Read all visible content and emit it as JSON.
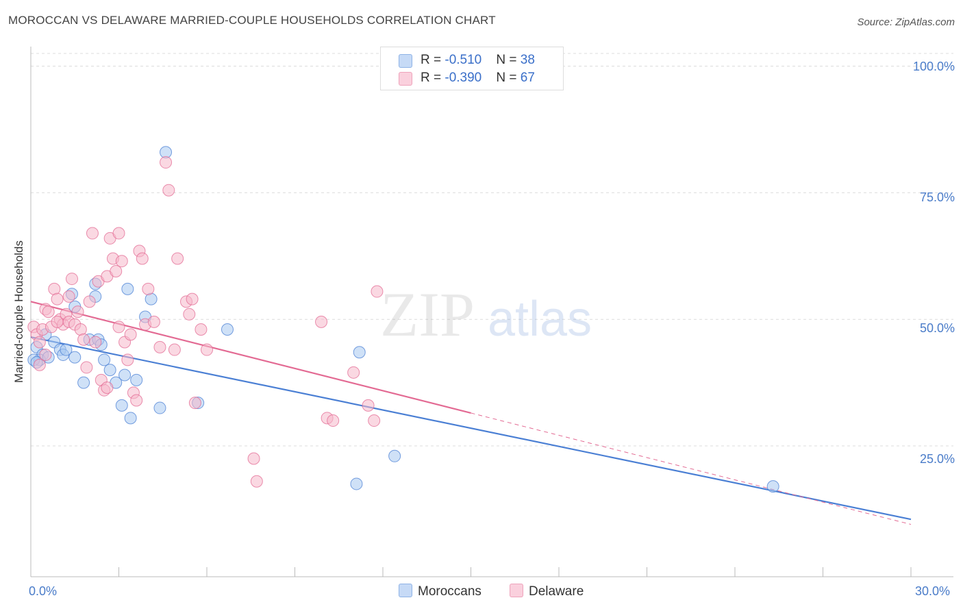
{
  "header": {
    "title": "MOROCCAN VS DELAWARE MARRIED-COUPLE HOUSEHOLDS CORRELATION CHART",
    "source": "Source: ZipAtlas.com"
  },
  "watermark": {
    "zip": "ZIP",
    "atlas": "atlas"
  },
  "legend_top": {
    "rows": [
      {
        "r_label": "R = ",
        "r_value": "-0.510",
        "n_label": "N = ",
        "n_value": "38",
        "color": "#a8c8f0"
      },
      {
        "r_label": "R = ",
        "r_value": "-0.390",
        "n_label": "N = ",
        "n_value": "67",
        "color": "#f5b8cb"
      }
    ]
  },
  "legend_bottom": [
    {
      "label": "Moroccans",
      "color": "#a8c8f0"
    },
    {
      "label": "Delaware",
      "color": "#f5b8cb"
    }
  ],
  "axes": {
    "ylabel": "Married-couple Households",
    "y_ticks": [
      "100.0%",
      "75.0%",
      "50.0%",
      "25.0%"
    ],
    "x_ticks": [
      "0.0%",
      "30.0%"
    ]
  },
  "chart_data": {
    "type": "scatter",
    "title": "MOROCCAN VS DELAWARE MARRIED-COUPLE HOUSEHOLDS CORRELATION CHART",
    "xlabel": "",
    "ylabel": "Married-couple Households",
    "xlim": [
      0,
      30
    ],
    "ylim": [
      0,
      104
    ],
    "grid": true,
    "legend": "top-center",
    "series": [
      {
        "name": "Moroccans",
        "color": "#4a7fd4",
        "fill": "#a8c8f0",
        "R": -0.51,
        "N": 38,
        "points": [
          [
            0.2,
            44.5
          ],
          [
            0.4,
            43
          ],
          [
            0.3,
            42
          ],
          [
            0.5,
            47
          ],
          [
            0.6,
            42.5
          ],
          [
            0.8,
            45.5
          ],
          [
            1.0,
            44
          ],
          [
            1.1,
            43
          ],
          [
            1.2,
            44
          ],
          [
            1.5,
            42.5
          ],
          [
            1.8,
            37.5
          ],
          [
            1.4,
            55
          ],
          [
            1.5,
            52.5
          ],
          [
            2.2,
            54.5
          ],
          [
            2.2,
            57
          ],
          [
            2.0,
            46
          ],
          [
            2.3,
            46
          ],
          [
            2.4,
            45
          ],
          [
            2.5,
            42
          ],
          [
            2.7,
            40
          ],
          [
            2.9,
            37.5
          ],
          [
            3.1,
            33
          ],
          [
            3.2,
            39
          ],
          [
            3.3,
            56
          ],
          [
            3.4,
            30.5
          ],
          [
            3.6,
            38
          ],
          [
            3.9,
            50.5
          ],
          [
            4.1,
            54
          ],
          [
            4.4,
            32.5
          ],
          [
            4.6,
            83
          ],
          [
            5.7,
            33.5
          ],
          [
            6.7,
            48
          ],
          [
            11.2,
            43.5
          ],
          [
            12.4,
            23
          ],
          [
            11.1,
            17.5
          ],
          [
            25.3,
            17
          ],
          [
            0.1,
            42
          ],
          [
            0.2,
            41.5
          ]
        ]
      },
      {
        "name": "Delaware",
        "color": "#e36a93",
        "fill": "#f5b8cb",
        "R": -0.39,
        "N": 67,
        "points": [
          [
            0.1,
            48.5
          ],
          [
            0.2,
            47
          ],
          [
            0.3,
            45.5
          ],
          [
            0.4,
            48
          ],
          [
            0.5,
            52
          ],
          [
            0.6,
            51.5
          ],
          [
            0.7,
            48.5
          ],
          [
            0.8,
            56
          ],
          [
            0.9,
            54
          ],
          [
            1.0,
            50
          ],
          [
            1.1,
            49
          ],
          [
            1.2,
            51
          ],
          [
            1.3,
            49.5
          ],
          [
            1.4,
            58
          ],
          [
            1.5,
            49
          ],
          [
            1.6,
            51.5
          ],
          [
            1.7,
            48
          ],
          [
            1.8,
            46
          ],
          [
            1.9,
            40.5
          ],
          [
            2.0,
            53.5
          ],
          [
            2.1,
            67
          ],
          [
            2.2,
            45.5
          ],
          [
            2.3,
            57.5
          ],
          [
            2.4,
            38
          ],
          [
            2.5,
            36
          ],
          [
            2.6,
            58.5
          ],
          [
            2.7,
            66
          ],
          [
            2.8,
            62
          ],
          [
            2.9,
            59.5
          ],
          [
            3.0,
            67
          ],
          [
            3.1,
            61.5
          ],
          [
            3.2,
            45.5
          ],
          [
            3.3,
            42
          ],
          [
            3.4,
            47
          ],
          [
            3.5,
            35.5
          ],
          [
            3.6,
            34
          ],
          [
            3.7,
            63.5
          ],
          [
            3.8,
            62
          ],
          [
            3.9,
            49
          ],
          [
            4.0,
            56
          ],
          [
            4.2,
            49.5
          ],
          [
            4.4,
            44.5
          ],
          [
            4.6,
            81
          ],
          [
            4.7,
            75.5
          ],
          [
            4.9,
            44
          ],
          [
            5.0,
            62
          ],
          [
            5.3,
            53.5
          ],
          [
            5.4,
            51
          ],
          [
            5.6,
            33.5
          ],
          [
            5.5,
            54
          ],
          [
            5.8,
            48
          ],
          [
            6.0,
            44
          ],
          [
            7.6,
            22.5
          ],
          [
            7.7,
            18
          ],
          [
            9.9,
            49.5
          ],
          [
            10.1,
            30.5
          ],
          [
            10.3,
            30
          ],
          [
            11.0,
            39.5
          ],
          [
            11.5,
            33
          ],
          [
            11.7,
            30
          ],
          [
            11.8,
            55.5
          ],
          [
            0.3,
            41
          ],
          [
            1.3,
            54.5
          ],
          [
            2.6,
            36.5
          ],
          [
            3.0,
            48.5
          ],
          [
            0.5,
            43
          ],
          [
            0.9,
            49.5
          ]
        ]
      }
    ],
    "trend_lines": [
      {
        "series": "Moroccans",
        "x": [
          0,
          30
        ],
        "y": [
          46.5,
          10.5
        ],
        "style": "solid"
      },
      {
        "series": "Delaware",
        "x": [
          0,
          15
        ],
        "y": [
          53.5,
          31.5
        ],
        "style": "solid"
      },
      {
        "series": "Delaware",
        "x": [
          15,
          30
        ],
        "y": [
          31.5,
          9.5
        ],
        "style": "dashed"
      }
    ]
  }
}
